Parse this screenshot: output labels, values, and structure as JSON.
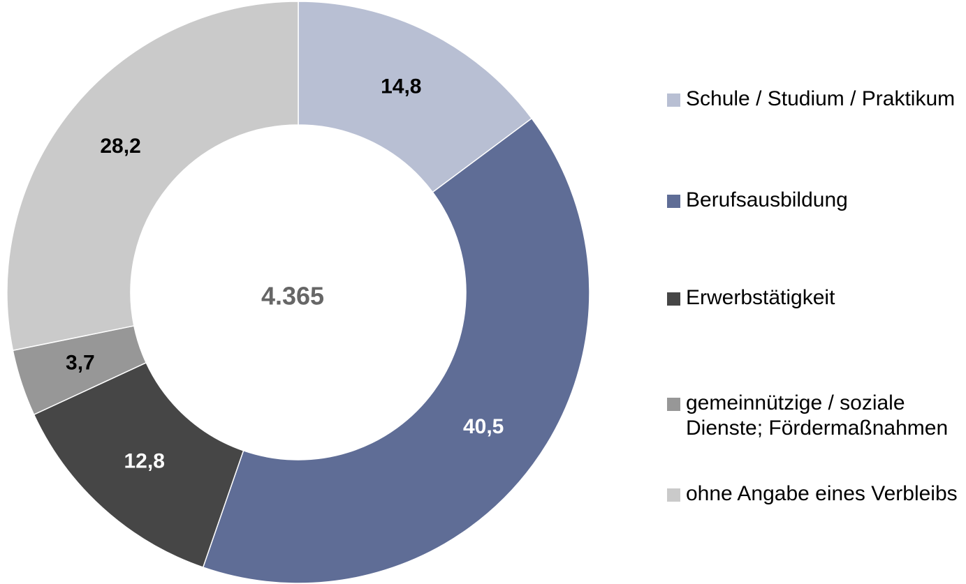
{
  "chart_data": {
    "type": "donut",
    "center_label": "4.365",
    "categories": [
      "Schule / Studium / Praktikum",
      "Berufsausbildung",
      "Erwerbstätigkeit",
      "gemeinnützige / soziale Dienste; Fördermaßnahmen",
      "ohne Angabe eines Verbleibs"
    ],
    "values": [
      14.8,
      40.5,
      12.8,
      3.7,
      28.2
    ],
    "value_labels": [
      "14,8",
      "40,5",
      "12,8",
      "3,7",
      "28,2"
    ],
    "colors": [
      "#b8bfd3",
      "#5f6d96",
      "#464646",
      "#979797",
      "#cacaca"
    ],
    "label_colors": [
      "#000000",
      "#ffffff",
      "#ffffff",
      "#000000",
      "#000000"
    ],
    "legend": "right"
  }
}
